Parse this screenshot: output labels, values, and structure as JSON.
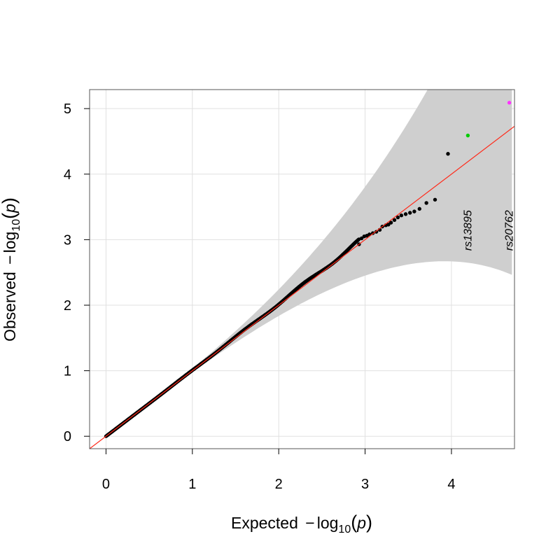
{
  "chart_data": {
    "type": "scatter",
    "title": "",
    "xlabel": {
      "prefix": "Expected ",
      "minus": "−",
      "log": "log",
      "base": "10",
      "open": "(",
      "var": "p",
      "close": ")"
    },
    "ylabel": {
      "prefix": "Observed ",
      "minus": "−",
      "log": "log",
      "base": "10",
      "open": "(",
      "var": "p",
      "close": ")"
    },
    "xlim": [
      -0.19,
      4.73
    ],
    "ylim": [
      -0.19,
      5.29
    ],
    "grid": true,
    "x_ticks": [
      0,
      1,
      2,
      3,
      4
    ],
    "x_tick_labels": [
      "0",
      "1",
      "2",
      "3",
      "4"
    ],
    "y_ticks": [
      0,
      1,
      2,
      3,
      4,
      5
    ],
    "y_tick_labels": [
      "0",
      "1",
      "2",
      "3",
      "4",
      "5"
    ],
    "reference_line": {
      "slope": 1,
      "intercept": 0,
      "color": "#ff2a1a"
    },
    "confidence_band": {
      "color": "#cfcfcf",
      "level": 0.95
    },
    "colors": {
      "points": "#000000",
      "grid": "#e0e0e0",
      "frame": "#555555"
    },
    "bulk_trend": {
      "x": [
        0.0,
        2.93
      ],
      "y_offset_max": 0.08
    },
    "points": [
      {
        "x": 2.93,
        "y": 2.93
      },
      {
        "x": 2.96,
        "y": 3.02
      },
      {
        "x": 2.99,
        "y": 3.05
      },
      {
        "x": 3.02,
        "y": 3.06
      },
      {
        "x": 3.05,
        "y": 3.08
      },
      {
        "x": 3.09,
        "y": 3.1
      },
      {
        "x": 3.13,
        "y": 3.12
      },
      {
        "x": 3.17,
        "y": 3.15
      },
      {
        "x": 3.2,
        "y": 3.2
      },
      {
        "x": 3.24,
        "y": 3.22
      },
      {
        "x": 3.27,
        "y": 3.23
      },
      {
        "x": 3.3,
        "y": 3.26
      },
      {
        "x": 3.34,
        "y": 3.3
      },
      {
        "x": 3.38,
        "y": 3.34
      },
      {
        "x": 3.42,
        "y": 3.37
      },
      {
        "x": 3.47,
        "y": 3.39
      },
      {
        "x": 3.52,
        "y": 3.41
      },
      {
        "x": 3.57,
        "y": 3.43
      },
      {
        "x": 3.63,
        "y": 3.47
      },
      {
        "x": 3.71,
        "y": 3.56
      },
      {
        "x": 3.81,
        "y": 3.61
      },
      {
        "x": 3.96,
        "y": 4.31
      },
      {
        "x": 4.19,
        "y": 4.59,
        "color": "#00cc00",
        "label": "rs13895"
      },
      {
        "x": 4.67,
        "y": 5.09,
        "color": "#ff33ff",
        "label": "rs20762"
      }
    ]
  }
}
